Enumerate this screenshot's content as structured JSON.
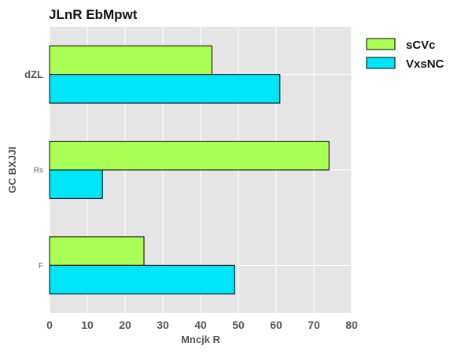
{
  "chart_data": {
    "type": "bar",
    "orientation": "horizontal",
    "title": "JLnR EbMpwt",
    "xlabel": "Mncjk R",
    "ylabel": "GC BXJJI",
    "categories": [
      "dZL",
      "Rs",
      "F"
    ],
    "series": [
      {
        "name": "sCVc",
        "values": [
          43,
          74,
          25
        ],
        "color": "#aaff55"
      },
      {
        "name": "VxsNC",
        "values": [
          61,
          14,
          49
        ],
        "color": "#00e5f8"
      }
    ],
    "xlim": [
      0,
      80
    ],
    "xticks": [
      "0",
      "10",
      "20",
      "30",
      "40",
      "50",
      "60",
      "70",
      "80"
    ],
    "grid": true,
    "legend_position": "top-right-outside"
  }
}
